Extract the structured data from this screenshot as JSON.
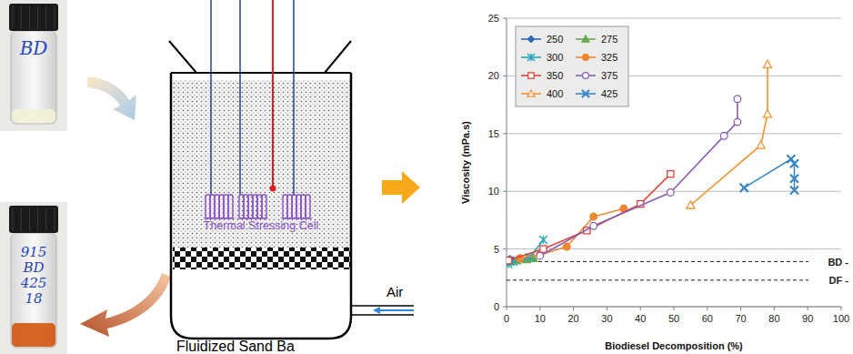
{
  "chart_data": {
    "type": "line",
    "x_label": "Biodiesel Decomposition (%)",
    "y_label": "Viscosity (mPa.s)",
    "xlim": [
      0,
      100
    ],
    "xticks": [
      0,
      10,
      20,
      30,
      40,
      50,
      60,
      70,
      80,
      90,
      100
    ],
    "ylim": [
      0,
      25
    ],
    "yticks": [
      0,
      5,
      10,
      15,
      20,
      25
    ],
    "grid": true,
    "legend": "upper left",
    "series": [
      {
        "name": "250",
        "color": "#2a6ebb",
        "marker": "diamond",
        "x": [
          0.3,
          1.0,
          2.0
        ],
        "values": [
          4.0,
          4.1,
          4.0
        ]
      },
      {
        "name": "275",
        "color": "#6aa84f",
        "marker": "triangle",
        "x": [
          1.0,
          3.0,
          6.0,
          8.0
        ],
        "values": [
          3.9,
          4.0,
          4.1,
          4.2
        ]
      },
      {
        "name": "300",
        "color": "#27a8b8",
        "marker": "asterisk",
        "x": [
          0.5,
          2.0,
          7.0,
          11.0
        ],
        "values": [
          3.7,
          3.9,
          4.3,
          5.8
        ]
      },
      {
        "name": "325",
        "color": "#f0862e",
        "marker": "circle",
        "x": [
          4.0,
          10.0,
          18.0,
          26.0,
          35.0
        ],
        "values": [
          4.2,
          4.5,
          5.2,
          7.8,
          8.5
        ]
      },
      {
        "name": "350",
        "color": "#e0443e",
        "marker": "open-square",
        "x": [
          0.5,
          11.0,
          24.0,
          40.0,
          49.0
        ],
        "values": [
          4.0,
          5.0,
          6.6,
          8.9,
          11.5
        ]
      },
      {
        "name": "375",
        "color": "#8a5fb0",
        "marker": "open-circle",
        "x": [
          10.0,
          26.0,
          49.0,
          65.0,
          69.0,
          69.0
        ],
        "values": [
          4.4,
          7.0,
          9.9,
          14.8,
          16.0,
          18.0
        ]
      },
      {
        "name": "400",
        "color": "#f29534",
        "marker": "open-triangle",
        "x": [
          55.0,
          76.0,
          78.0,
          78.0
        ],
        "values": [
          8.8,
          14.0,
          16.7,
          21.0
        ]
      },
      {
        "name": "425",
        "color": "#3b86c6",
        "marker": "x",
        "x": [
          71.0,
          85.0,
          86.0,
          86.0,
          86.0
        ],
        "values": [
          10.3,
          12.8,
          12.4,
          11.1,
          10.1
        ]
      }
    ],
    "reference_lines": [
      {
        "label": "BD -",
        "value": 3.9
      },
      {
        "label": "DF -",
        "value": 2.3
      }
    ]
  },
  "diagram": {
    "top_vial_label": "BD",
    "bottom_vial_label": [
      "915",
      "BD",
      "425",
      "18"
    ],
    "cell_label": "Thermal Stressing Cell",
    "inlet_label": "Air",
    "caption": "Fluidized Sand Ba"
  }
}
